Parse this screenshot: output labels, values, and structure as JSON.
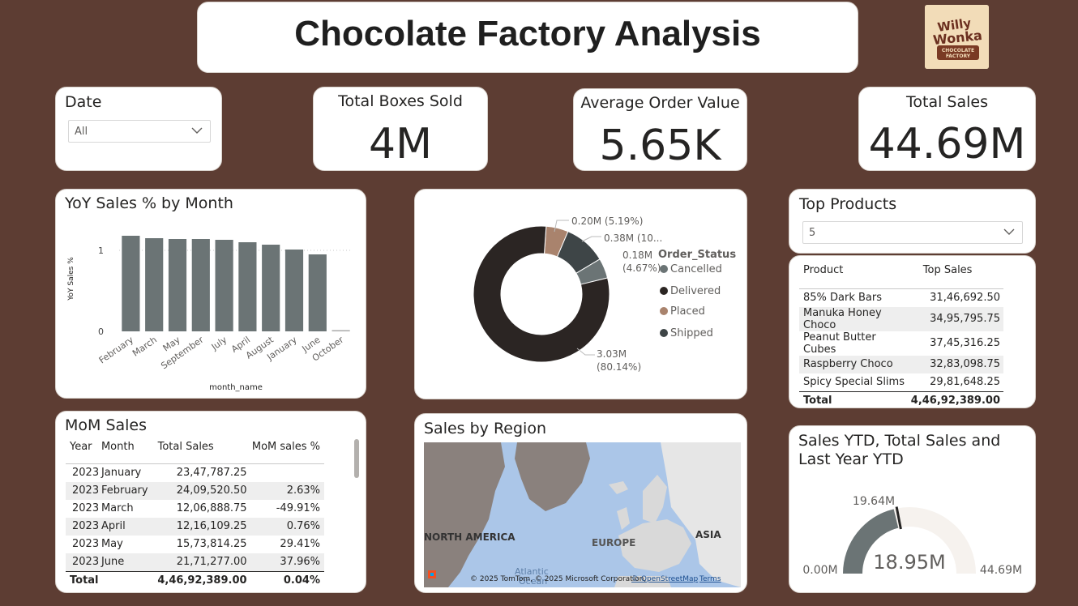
{
  "title": "Chocolate Factory Analysis",
  "logo": {
    "line1": "Willy",
    "line2": "Wonka",
    "line3": "CHOCOLATE",
    "line4": "FACTORY"
  },
  "date_filter": {
    "label": "Date",
    "value": "All"
  },
  "kpis": {
    "boxes": {
      "label": "Total Boxes Sold",
      "value": "4M"
    },
    "aov": {
      "label": "Average Order Value",
      "value": "5.65K"
    },
    "sales": {
      "label": "Total Sales",
      "value": "44.69M"
    }
  },
  "yoy_chart": {
    "title": "YoY Sales % by Month",
    "chart_data": {
      "type": "bar",
      "categories": [
        "February",
        "March",
        "May",
        "September",
        "July",
        "April",
        "August",
        "January",
        "June",
        "October"
      ],
      "values": [
        1.18,
        1.15,
        1.14,
        1.14,
        1.13,
        1.1,
        1.07,
        1.01,
        0.95,
        0.01
      ],
      "xlabel": "month_name",
      "ylabel": "YoY Sales %",
      "yticks": [
        "0",
        "1"
      ],
      "ylim": [
        0,
        1.3
      ],
      "color": "#6b7475"
    }
  },
  "donut": {
    "chart_data": {
      "type": "pie",
      "legend_title": "Order_Status",
      "categories": [
        "Cancelled",
        "Delivered",
        "Placed",
        "Shipped"
      ],
      "values": [
        0.18,
        3.03,
        0.2,
        0.38
      ],
      "percentages": [
        4.67,
        80.14,
        5.19,
        10.0
      ],
      "labels": [
        "0.18M\n(4.67%)",
        "3.03M\n(80.14%)",
        "0.20M (5.19%)",
        "0.38M (10..."
      ],
      "colors": [
        "#6b7475",
        "#2b2523",
        "#a9836d",
        "#3e4547"
      ]
    }
  },
  "top_products": {
    "title": "Top Products",
    "filter_value": "5",
    "columns": [
      "Product",
      "Top Sales"
    ],
    "rows": [
      [
        "85% Dark Bars",
        "31,46,692.50"
      ],
      [
        "Manuka Honey Choco",
        "34,95,795.75"
      ],
      [
        "Peanut Butter Cubes",
        "37,45,316.25"
      ],
      [
        "Raspberry Choco",
        "32,83,098.75"
      ],
      [
        "Spicy Special Slims",
        "29,81,648.25"
      ]
    ],
    "total": [
      "Total",
      "4,46,92,389.00"
    ]
  },
  "mom": {
    "title": "MoM Sales",
    "columns": [
      "Year",
      "Month",
      "Total Sales",
      "MoM sales %"
    ],
    "rows": [
      [
        "2023",
        "January",
        "23,47,787.25",
        ""
      ],
      [
        "2023",
        "February",
        "24,09,520.50",
        "2.63%"
      ],
      [
        "2023",
        "March",
        "12,06,888.75",
        "-49.91%"
      ],
      [
        "2023",
        "April",
        "12,16,109.25",
        "0.76%"
      ],
      [
        "2023",
        "May",
        "15,73,814.25",
        "29.41%"
      ],
      [
        "2023",
        "June",
        "21,71,277.00",
        "37.96%"
      ]
    ],
    "total": [
      "Total",
      "4,46,92,389.00",
      "0.04%"
    ]
  },
  "region": {
    "title": "Sales by Region",
    "labels": {
      "na": "NORTH AMERICA",
      "eu": "EUROPE",
      "asia": "ASIA",
      "atlantic1": "Atlantic",
      "atlantic2": "Ocean"
    },
    "attribution": "© 2025 TomTom, © 2025 Microsoft Corporation,",
    "osm_link": "© OpenStreetMap",
    "terms_link": "Terms"
  },
  "gauge": {
    "title_line1": "Sales YTD, Total Sales and",
    "title_line2": "Last Year YTD",
    "value": 18.95,
    "target": 19.64,
    "min": 0,
    "max": 44.69,
    "value_label": "18.95M",
    "target_label": "19.64M",
    "min_label": "0.00M",
    "max_label": "44.69M",
    "fill_color": "#6b7475",
    "track_color": "#f6f2ee"
  }
}
